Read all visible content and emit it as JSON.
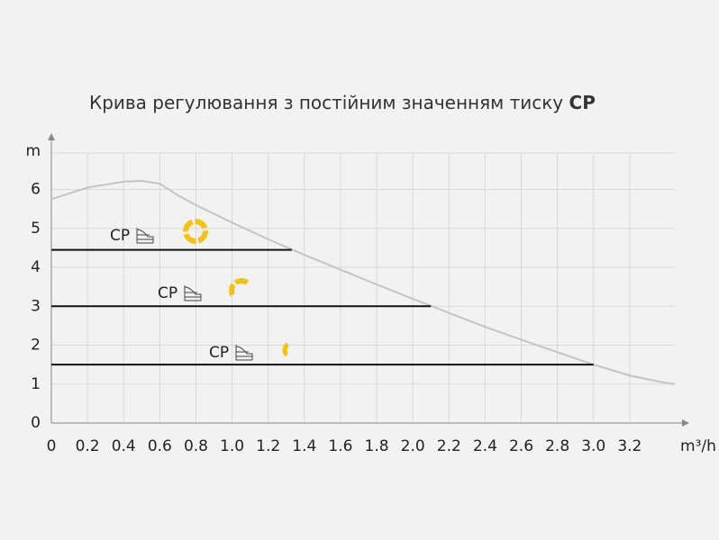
{
  "chart_data": {
    "type": "line",
    "title": "Крива регулювання з постійним значенням тиску",
    "title_bold": "CP",
    "x_label": "m³/h",
    "y_label": "m",
    "xlim": [
      0,
      3.45
    ],
    "ylim": [
      0,
      7.4
    ],
    "xticks": [
      0,
      0.2,
      0.4,
      0.6,
      0.8,
      {
        "value": 1,
        "label": "1.0"
      },
      1.2,
      1.4,
      1.6,
      1.8,
      {
        "value": 2,
        "label": "2.0"
      },
      2.2,
      2.4,
      2.6,
      2.8,
      {
        "value": 3,
        "label": "3.0"
      },
      3.2
    ],
    "yticks": [
      0,
      1,
      2,
      3,
      4,
      5,
      6
    ],
    "grid": true,
    "series": [
      {
        "color": "#c4c4c4",
        "x": [
          0,
          0.2,
          0.4,
          0.5,
          0.6,
          0.7,
          0.8,
          1.0,
          1.2,
          1.4,
          1.6,
          1.8,
          2.0,
          2.2,
          2.4,
          2.6,
          2.8,
          3.0,
          3.2,
          3.4,
          3.45
        ],
        "values": [
          5.75,
          6.05,
          6.2,
          6.22,
          6.15,
          5.85,
          5.6,
          5.15,
          4.72,
          4.32,
          3.94,
          3.56,
          3.19,
          2.83,
          2.47,
          2.14,
          1.82,
          1.5,
          1.22,
          1.03,
          1.0
        ]
      },
      {
        "color": "#111111",
        "x": [
          0,
          1.33
        ],
        "values": [
          4.45,
          4.45
        ]
      },
      {
        "color": "#111111",
        "x": [
          0,
          2.1
        ],
        "values": [
          3.0,
          3.0
        ]
      },
      {
        "color": "#111111",
        "x": [
          0,
          3.0
        ],
        "values": [
          1.5,
          1.5
        ]
      }
    ],
    "annotations": [
      "CP",
      "CP",
      "CP"
    ]
  }
}
